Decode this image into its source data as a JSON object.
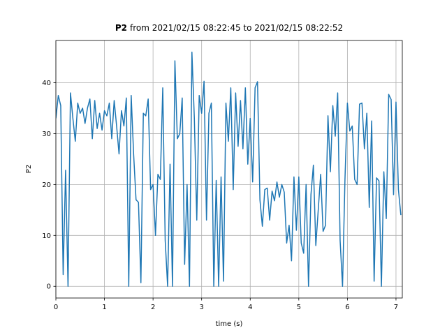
{
  "chart_data": {
    "type": "line",
    "title_bold": "P2",
    "title_rest": "from 2021/02/15 08:22:45 to 2021/02/15 08:22:52",
    "xlabel": "time (s)",
    "ylabel": "P2",
    "color": "#1f77b4",
    "grid": true,
    "xlim": [
      0,
      7.13
    ],
    "ylim": [
      -2.3,
      48.3
    ],
    "xticks": [
      0,
      1,
      2,
      3,
      4,
      5,
      6,
      7
    ],
    "yticks": [
      0,
      10,
      20,
      30,
      40
    ],
    "x": [
      0,
      0.05,
      0.1,
      0.15,
      0.2,
      0.25,
      0.3,
      0.35,
      0.4,
      0.45,
      0.5,
      0.55,
      0.6,
      0.65,
      0.7,
      0.75,
      0.8,
      0.85,
      0.9,
      0.95,
      1,
      1.05,
      1.1,
      1.15,
      1.2,
      1.25,
      1.3,
      1.35,
      1.4,
      1.45,
      1.5,
      1.55,
      1.6,
      1.65,
      1.7,
      1.75,
      1.8,
      1.85,
      1.9,
      1.95,
      2,
      2.05,
      2.1,
      2.15,
      2.2,
      2.25,
      2.3,
      2.35,
      2.4,
      2.45,
      2.5,
      2.55,
      2.6,
      2.65,
      2.7,
      2.75,
      2.8,
      2.85,
      2.9,
      2.95,
      3,
      3.05,
      3.1,
      3.15,
      3.2,
      3.25,
      3.3,
      3.35,
      3.4,
      3.45,
      3.5,
      3.55,
      3.6,
      3.65,
      3.7,
      3.75,
      3.8,
      3.85,
      3.9,
      3.95,
      4,
      4.05,
      4.1,
      4.15,
      4.2,
      4.25,
      4.3,
      4.35,
      4.4,
      4.45,
      4.5,
      4.55,
      4.6,
      4.65,
      4.7,
      4.75,
      4.8,
      4.85,
      4.9,
      4.95,
      5,
      5.05,
      5.1,
      5.15,
      5.2,
      5.25,
      5.3,
      5.35,
      5.4,
      5.45,
      5.5,
      5.55,
      5.6,
      5.65,
      5.7,
      5.75,
      5.8,
      5.85,
      5.9,
      5.95,
      6,
      6.05,
      6.1,
      6.15,
      6.2,
      6.25,
      6.3,
      6.35,
      6.4,
      6.45,
      6.5,
      6.55,
      6.6,
      6.65,
      6.7,
      6.75,
      6.8,
      6.85,
      6.9,
      6.95,
      7,
      7.05,
      7.1
    ],
    "values": [
      33,
      37.5,
      35.5,
      2.3,
      22.8,
      0,
      38,
      33,
      28.5,
      36,
      34,
      35,
      32,
      35,
      36.8,
      29,
      36.5,
      31,
      34,
      30.7,
      34.5,
      33.5,
      36,
      29,
      36.5,
      31.5,
      26,
      34.5,
      31.5,
      37,
      0,
      37.5,
      26,
      17,
      16.5,
      0.7,
      34,
      33.5,
      36.8,
      19,
      20,
      10,
      22,
      21,
      39,
      9,
      0,
      24,
      0,
      44.3,
      29,
      30,
      37,
      4.3,
      20,
      0,
      46,
      33,
      13,
      37.5,
      34,
      40.3,
      13,
      34,
      36,
      0,
      20.8,
      0,
      21.5,
      1,
      36,
      28.5,
      39,
      19,
      38,
      27.5,
      36.5,
      27,
      39,
      24,
      33,
      20.5,
      39,
      40.2,
      17,
      11.8,
      19,
      19.3,
      13,
      18.7,
      16.8,
      20.5,
      17.5,
      20,
      18.5,
      8.5,
      12,
      5,
      21.5,
      11,
      21.5,
      8.5,
      6.5,
      20,
      0,
      18,
      23.8,
      8,
      15,
      22,
      10.8,
      12,
      33.5,
      22.5,
      35.5,
      29.5,
      38,
      9,
      0,
      21,
      36,
      30.5,
      31.5,
      21,
      20,
      35.8,
      36,
      27,
      34,
      15.5,
      32.5,
      1,
      21.3,
      20.7,
      0,
      22.5,
      13.3,
      37.7,
      36.7,
      18,
      36.2,
      19,
      14
    ]
  }
}
